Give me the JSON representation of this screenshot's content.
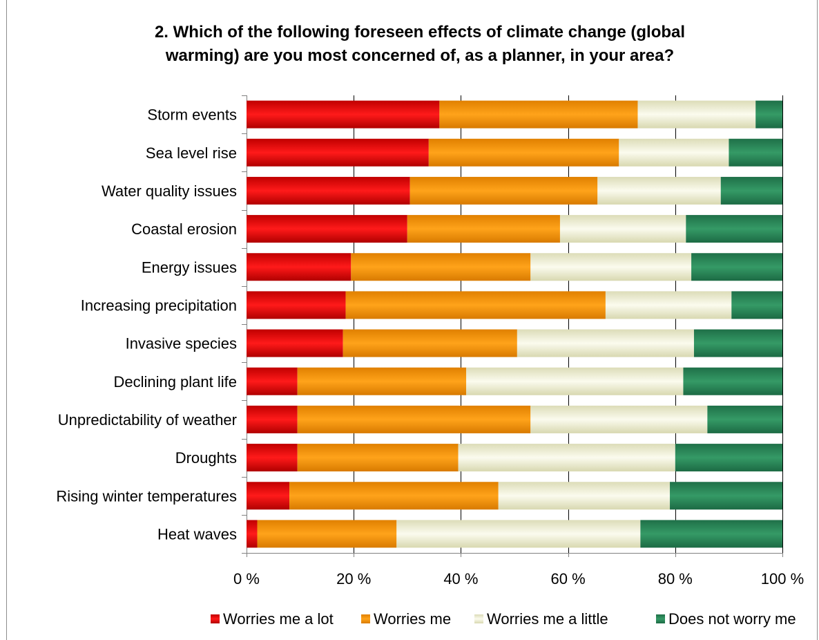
{
  "chart_data": {
    "type": "bar",
    "orientation": "horizontal",
    "stacked": true,
    "title_lines": [
      "2. Which of the following foreseen effects of climate change (global",
      "warming) are you most concerned of, as a planner, in your area?"
    ],
    "categories": [
      "Storm events",
      "Sea level rise",
      "Water quality issues",
      "Coastal erosion",
      "Energy issues",
      "Increasing precipitation",
      "Invasive species",
      "Declining plant life",
      "Unpredictability of weather",
      "Droughts",
      "Rising winter temperatures",
      "Heat waves"
    ],
    "series": [
      {
        "name": "Worries me a lot",
        "color": "#e00000",
        "values": [
          36,
          34,
          30.5,
          30,
          19.5,
          18.5,
          18,
          9.5,
          9.5,
          9.5,
          8,
          2
        ]
      },
      {
        "name": "Worries me",
        "color": "#f59400",
        "values": [
          37,
          35.5,
          35,
          28.5,
          33.5,
          48.5,
          32.5,
          31.5,
          43.5,
          30,
          39,
          26
        ]
      },
      {
        "name": "Worries me a little",
        "color": "#eeeecd",
        "values": [
          22,
          20.5,
          23,
          23.5,
          30,
          23.5,
          33,
          40.5,
          33,
          40.5,
          32,
          45.5
        ]
      },
      {
        "name": "Does not worry me",
        "color": "#2a8558",
        "values": [
          5,
          10,
          11.5,
          18,
          17,
          9.5,
          16.5,
          18.5,
          14,
          20,
          21,
          26.5
        ]
      }
    ],
    "x_ticks": [
      "0 %",
      "20 %",
      "40 %",
      "60 %",
      "80 %",
      "100 %"
    ],
    "xlim": [
      0,
      100
    ],
    "grid": true,
    "legend_position": "bottom"
  }
}
